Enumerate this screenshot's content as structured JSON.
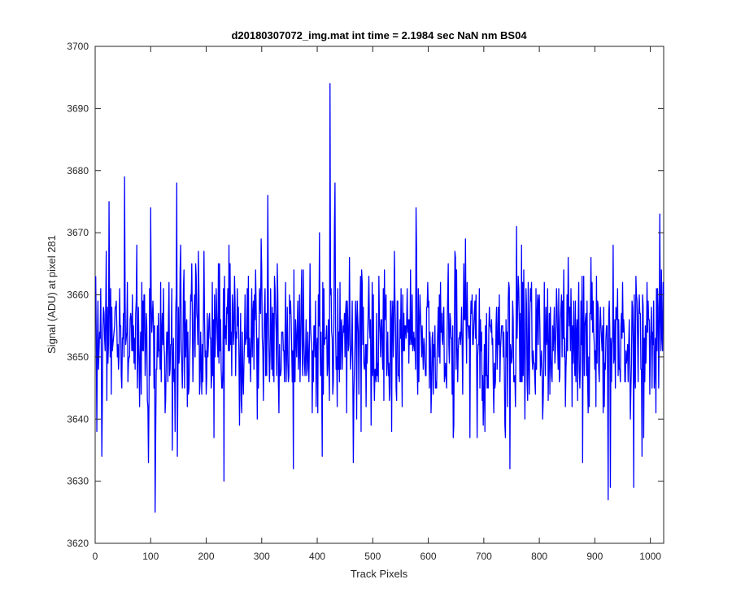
{
  "chart_data": {
    "type": "line",
    "title": "d20180307072_img.mat int time = 2.1984 sec  NaN nm BS04",
    "xlabel": "Track Pixels",
    "ylabel": "Signal (ADU) at pixel 281",
    "xlim": [
      0,
      1024
    ],
    "ylim": [
      3620,
      3700
    ],
    "xticks": [
      0,
      100,
      200,
      300,
      400,
      500,
      600,
      700,
      800,
      900,
      1000
    ],
    "yticks": [
      3620,
      3630,
      3640,
      3650,
      3660,
      3670,
      3680,
      3690,
      3700
    ],
    "grid": false,
    "line_color": "#0000ff",
    "series": [
      {
        "name": "",
        "x_start": 1,
        "x_step": 1,
        "count": 1024,
        "mean": 3653,
        "noise_sd": 6.5,
        "spikes": [
          {
            "x": 423,
            "y": 3694
          },
          {
            "x": 53,
            "y": 3679
          },
          {
            "x": 147,
            "y": 3678
          },
          {
            "x": 432,
            "y": 3678
          },
          {
            "x": 25,
            "y": 3675
          },
          {
            "x": 100,
            "y": 3674
          },
          {
            "x": 311,
            "y": 3676
          },
          {
            "x": 578,
            "y": 3674
          },
          {
            "x": 1017,
            "y": 3673
          },
          {
            "x": 108,
            "y": 3625
          },
          {
            "x": 232,
            "y": 3630
          },
          {
            "x": 924,
            "y": 3627
          },
          {
            "x": 928,
            "y": 3629
          },
          {
            "x": 465,
            "y": 3633
          },
          {
            "x": 12,
            "y": 3634
          },
          {
            "x": 148,
            "y": 3634
          },
          {
            "x": 878,
            "y": 3633
          },
          {
            "x": 970,
            "y": 3629
          },
          {
            "x": 985,
            "y": 3634
          }
        ]
      }
    ]
  }
}
